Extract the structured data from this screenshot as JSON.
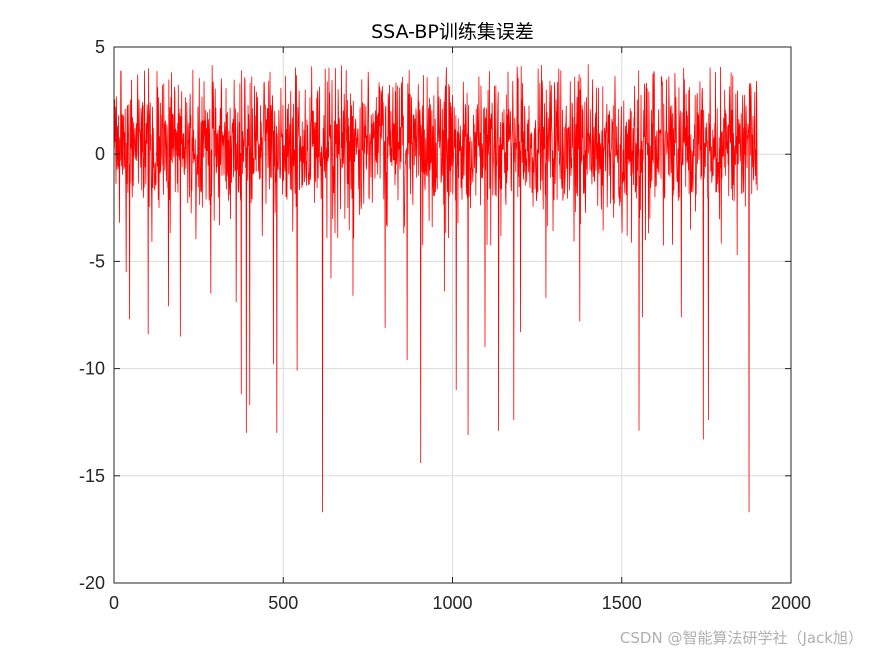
{
  "chart_data": {
    "type": "line",
    "title": "SSA-BP训练集误差",
    "xlabel": "",
    "ylabel": "",
    "xlim": [
      0,
      2000
    ],
    "ylim": [
      -20,
      5
    ],
    "xticks": [
      0,
      500,
      1000,
      1500,
      2000
    ],
    "yticks": [
      5,
      0,
      -5,
      -10,
      -15,
      -20
    ],
    "grid": true,
    "line_color": "#ff0000",
    "series": [
      {
        "n_points": 1900,
        "typical_range": [
          -4,
          4.2
        ],
        "min_value": -16.7,
        "max_value": 4.2,
        "notable_points": [
          {
            "x": 15,
            "y": -3.2
          },
          {
            "x": 35,
            "y": -5.5
          },
          {
            "x": 45,
            "y": -7.7
          },
          {
            "x": 100,
            "y": -8.4
          },
          {
            "x": 160,
            "y": -7.1
          },
          {
            "x": 195,
            "y": -8.5
          },
          {
            "x": 285,
            "y": -6.5
          },
          {
            "x": 360,
            "y": -6.9
          },
          {
            "x": 375,
            "y": -11.2
          },
          {
            "x": 390,
            "y": -13.0
          },
          {
            "x": 400,
            "y": -11.7
          },
          {
            "x": 470,
            "y": -9.8
          },
          {
            "x": 480,
            "y": -13.0
          },
          {
            "x": 540,
            "y": -10.1
          },
          {
            "x": 615,
            "y": -16.7
          },
          {
            "x": 640,
            "y": -5.8
          },
          {
            "x": 705,
            "y": -6.6
          },
          {
            "x": 800,
            "y": -8.1
          },
          {
            "x": 865,
            "y": -9.6
          },
          {
            "x": 905,
            "y": -14.4
          },
          {
            "x": 975,
            "y": -6.4
          },
          {
            "x": 1010,
            "y": -11.0
          },
          {
            "x": 1045,
            "y": -13.1
          },
          {
            "x": 1095,
            "y": -9.0
          },
          {
            "x": 1135,
            "y": -12.9
          },
          {
            "x": 1180,
            "y": -12.4
          },
          {
            "x": 1200,
            "y": -8.3
          },
          {
            "x": 1275,
            "y": -6.7
          },
          {
            "x": 1375,
            "y": -7.8
          },
          {
            "x": 1550,
            "y": -12.9
          },
          {
            "x": 1560,
            "y": -7.6
          },
          {
            "x": 1675,
            "y": -7.6
          },
          {
            "x": 1740,
            "y": -13.3
          },
          {
            "x": 1755,
            "y": -12.4
          },
          {
            "x": 1840,
            "y": -4.7
          },
          {
            "x": 1875,
            "y": -16.7
          }
        ]
      }
    ]
  },
  "watermark": "CSDN @智能算法研学社（Jack旭）"
}
